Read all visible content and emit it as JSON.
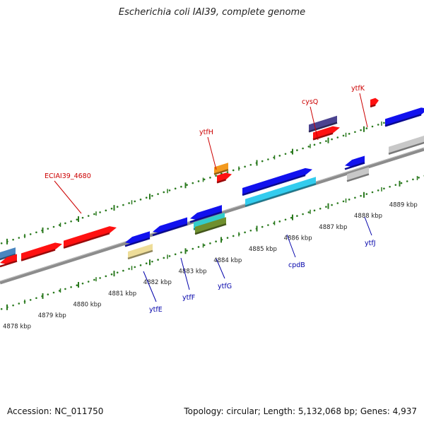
{
  "title": "Escherichia coli IAI39, complete genome",
  "footer": {
    "accession": "Accession: NC_011750",
    "summary": "Topology: circular; Length: 5,132,068 bp; Genes: 4,937"
  },
  "colors": {
    "backbone": "#8c8c8c",
    "tick": "#2b7a1f",
    "forward_label": "#cc0000",
    "reverse_label": "#0000aa",
    "red": "#ff1111",
    "blue": "#1111ee",
    "steelblue": "#4a86c0",
    "cyan": "#33ccee",
    "orange": "#f39a1e",
    "navy": "#4b4390",
    "khaki": "#eedd99",
    "olive": "#6f8f2e",
    "silver": "#c8c8c8",
    "teal": "#33cccc"
  },
  "scale_ticks": [
    "4878 kbp",
    "4879 kbp",
    "4880 kbp",
    "4881 kbp",
    "4882 kbp",
    "4883 kbp",
    "4884 kbp",
    "4885 kbp",
    "4886 kbp",
    "4887 kbp",
    "4888 kbp",
    "4889 kbp"
  ],
  "forward_labels": [
    {
      "text": "ECIAI39_4680"
    },
    {
      "text": "ytfH"
    },
    {
      "text": "cysQ"
    },
    {
      "text": "ytfK"
    }
  ],
  "reverse_labels": [
    {
      "text": "ytfE"
    },
    {
      "text": "ytfF"
    },
    {
      "text": "ytfG"
    },
    {
      "text": "cpdB"
    },
    {
      "text": "ytfJ"
    }
  ]
}
